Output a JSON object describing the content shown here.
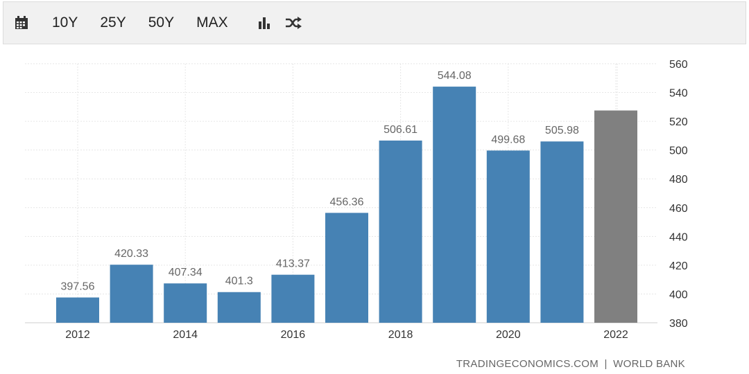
{
  "toolbar": {
    "calendar_icon": "calendar-icon",
    "ranges": [
      "10Y",
      "25Y",
      "50Y",
      "MAX"
    ],
    "bar_chart_icon": "bar-chart-icon",
    "shuffle_icon": "shuffle-icon"
  },
  "source": {
    "site": "TRADINGECONOMICS.COM",
    "separator": "|",
    "provider": "WORLD BANK"
  },
  "colors": {
    "bar": "#4682b4",
    "forecast_bar": "#808080",
    "label": "#666666",
    "grid": "#e6e6e6"
  },
  "chart_data": {
    "type": "bar",
    "categories": [
      "2012",
      "2013",
      "2014",
      "2015",
      "2016",
      "2017",
      "2018",
      "2019",
      "2020",
      "2021",
      "2022"
    ],
    "values": [
      397.56,
      420.33,
      407.34,
      401.3,
      413.37,
      456.36,
      506.61,
      544.08,
      499.68,
      505.98,
      527.5
    ],
    "data_labels": [
      "397.56",
      "420.33",
      "407.34",
      "401.3",
      "413.37",
      "456.36",
      "506.61",
      "544.08",
      "499.68",
      "505.98",
      ""
    ],
    "forecast_index": 10,
    "x_tick_labels": [
      "2012",
      "2014",
      "2016",
      "2018",
      "2020",
      "2022"
    ],
    "y_ticks": [
      380,
      400,
      420,
      440,
      460,
      480,
      500,
      520,
      540,
      560
    ],
    "ylim": [
      380,
      560
    ],
    "y_axis_position": "right",
    "grid": true,
    "title": "",
    "xlabel": "",
    "ylabel": ""
  }
}
